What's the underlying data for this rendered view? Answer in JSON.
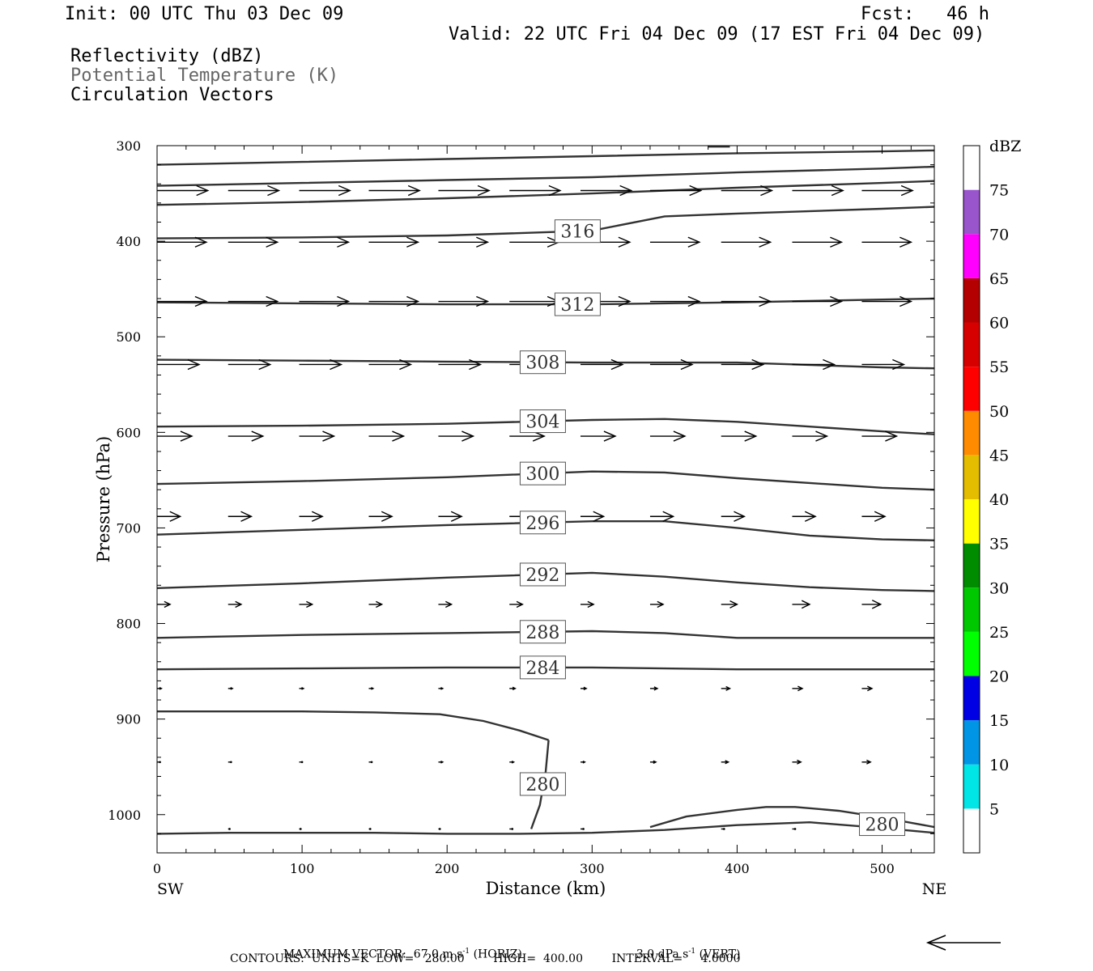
{
  "header": {
    "init": "Init: 00 UTC Thu 03 Dec 09",
    "fcst": "Fcst:   46 h",
    "valid": "Valid: 22 UTC Fri 04 Dec 09 (17 EST Fri 04 Dec 09)",
    "field1": "Reflectivity (dBZ)",
    "field2": "Potential Temperature (K)",
    "field3": "Circulation Vectors"
  },
  "footer": {
    "max_vector_label": "MAXIMUM VECTOR:",
    "max_vector_horiz_value": "67.0 m s",
    "max_vector_horiz_sup": "-1",
    "max_vector_horiz_tag": "(HORIZ)",
    "max_vector_vert_value": "3.0 dPa s",
    "max_vector_vert_sup": "-1",
    "max_vector_vert_tag": "(VERT)",
    "contours": "CONTOURS:  UNITS=K  LOW=   280.00        HIGH=  400.00        INTERVAL=     4.0000"
  },
  "colors": {
    "contour": "#333333",
    "axis": "#000000",
    "potential_temperature_legend": "#666666"
  },
  "chart_data": {
    "type": "cross-section",
    "xlabel": "Distance (km)",
    "ylabel": "Pressure (hPa)",
    "xlim": [
      0,
      536
    ],
    "ylim": [
      1040,
      300
    ],
    "y_log_scale": false,
    "x_ticks": [
      0,
      100,
      200,
      300,
      400,
      500
    ],
    "y_ticks": [
      300,
      400,
      500,
      600,
      700,
      800,
      900,
      1000
    ],
    "x_end_labels": {
      "left": "SW",
      "right": "NE"
    },
    "colorbar": {
      "unit": "dBZ",
      "levels": [
        5,
        10,
        15,
        20,
        25,
        30,
        35,
        40,
        45,
        50,
        55,
        60,
        65,
        70,
        75
      ],
      "colors": [
        "#ffffff",
        "#00e5e5",
        "#0096e5",
        "#0000e5",
        "#00ff00",
        "#00c800",
        "#008c00",
        "#ffff00",
        "#e5bd00",
        "#ff8c00",
        "#ff0000",
        "#d70000",
        "#b40000",
        "#ff00ff",
        "#9955cc",
        "#ffffff"
      ]
    },
    "reflectivity_present": false,
    "theta_contours": [
      {
        "level": 280,
        "label": "280",
        "x": [
          0,
          50,
          100,
          150,
          200,
          250,
          300,
          350,
          400,
          450,
          500,
          536
        ],
        "p": [
          1020,
          1019,
          1019,
          1019,
          1020,
          1020,
          1019,
          1016,
          1011,
          1008,
          1014,
          1019
        ]
      },
      {
        "level": 280,
        "label": "280",
        "x": [
          0,
          50,
          100,
          150,
          195,
          225,
          250,
          270
        ],
        "p": [
          892,
          892,
          892,
          893,
          895,
          902,
          912,
          922
        ]
      },
      {
        "level": 280,
        "label": "",
        "x": [
          270,
          268,
          264,
          258
        ],
        "p": [
          922,
          955,
          990,
          1015
        ]
      },
      {
        "level": 280,
        "label": "",
        "x": [
          340,
          365,
          400,
          420,
          440,
          470,
          500,
          536
        ],
        "p": [
          1013,
          1002,
          995,
          992,
          992,
          996,
          1003,
          1013
        ]
      },
      {
        "level": 284,
        "label": "284",
        "x": [
          0,
          100,
          200,
          300,
          400,
          500,
          536
        ],
        "p": [
          848,
          847,
          846,
          846,
          848,
          848,
          848
        ]
      },
      {
        "level": 288,
        "label": "288",
        "x": [
          0,
          100,
          200,
          300,
          350,
          400,
          500,
          536
        ],
        "p": [
          815,
          812,
          810,
          808,
          810,
          815,
          815,
          815
        ]
      },
      {
        "level": 292,
        "label": "292",
        "x": [
          0,
          100,
          200,
          300,
          350,
          400,
          450,
          500,
          536
        ],
        "p": [
          763,
          758,
          752,
          747,
          751,
          757,
          762,
          765,
          766
        ]
      },
      {
        "level": 296,
        "label": "296",
        "x": [
          0,
          100,
          200,
          300,
          350,
          400,
          450,
          500,
          536
        ],
        "p": [
          707,
          702,
          697,
          693,
          693,
          700,
          708,
          712,
          713
        ]
      },
      {
        "level": 300,
        "label": "300",
        "x": [
          0,
          100,
          200,
          300,
          350,
          400,
          450,
          500,
          536
        ],
        "p": [
          654,
          651,
          647,
          641,
          642,
          648,
          653,
          658,
          660
        ]
      },
      {
        "level": 304,
        "label": "304",
        "x": [
          0,
          100,
          200,
          300,
          350,
          400,
          450,
          500,
          536
        ],
        "p": [
          594,
          593,
          591,
          587,
          586,
          589,
          594,
          599,
          602
        ]
      },
      {
        "level": 308,
        "label": "308",
        "x": [
          0,
          100,
          200,
          300,
          400,
          500,
          536
        ],
        "p": [
          524,
          525,
          526,
          527,
          527,
          532,
          533
        ]
      },
      {
        "level": 312,
        "label": "312",
        "x": [
          0,
          100,
          200,
          300,
          400,
          500,
          536
        ],
        "p": [
          464,
          465,
          466,
          466,
          464,
          461,
          460
        ]
      },
      {
        "level": 316,
        "label": "316",
        "x": [
          0,
          100,
          200,
          300,
          350,
          400,
          500,
          536
        ],
        "p": [
          397,
          396,
          394,
          389,
          374,
          371,
          366,
          364
        ]
      },
      {
        "level": 320,
        "label": "",
        "x": [
          0,
          100,
          200,
          300,
          400,
          500,
          536
        ],
        "p": [
          362,
          359,
          355,
          350,
          344,
          339,
          337
        ]
      },
      {
        "level": 324,
        "label": "",
        "x": [
          0,
          100,
          200,
          300,
          400,
          500,
          536
        ],
        "p": [
          342,
          339,
          336,
          333,
          328,
          324,
          322
        ]
      },
      {
        "level": 328,
        "label": "",
        "x": [
          0,
          100,
          200,
          300,
          400,
          500,
          536
        ],
        "p": [
          320,
          317,
          314,
          311,
          308,
          306,
          305
        ]
      },
      {
        "level": 332,
        "label": "",
        "x": [
          380,
          395
        ],
        "p": [
          301,
          301
        ]
      }
    ],
    "vector_rows": [
      {
        "p": 347,
        "x": [
          0,
          49,
          98,
          146,
          194,
          243,
          292,
          340,
          389,
          438,
          486
        ],
        "len_km": [
          35,
          35,
          35,
          35,
          35,
          35,
          35,
          35,
          35,
          35,
          35
        ]
      },
      {
        "p": 401,
        "x": [
          0,
          49,
          98,
          146,
          194,
          243,
          292,
          340,
          389,
          438,
          486
        ],
        "len_km": [
          34,
          34,
          34,
          34,
          34,
          34,
          34,
          34,
          34,
          34,
          34
        ]
      },
      {
        "p": 463,
        "x": [
          0,
          49,
          98,
          146,
          194,
          243,
          292,
          340,
          389,
          438,
          486
        ],
        "len_km": [
          34,
          34,
          34,
          34,
          34,
          34,
          34,
          34,
          34,
          34,
          34
        ]
      },
      {
        "p": 529,
        "x": [
          0,
          49,
          98,
          146,
          194,
          243,
          292,
          340,
          389,
          438,
          486
        ],
        "len_km": [
          29,
          29,
          29,
          29,
          29,
          29,
          29,
          29,
          29,
          29,
          29
        ]
      },
      {
        "p": 604,
        "x": [
          0,
          49,
          98,
          146,
          194,
          243,
          292,
          340,
          389,
          438,
          486
        ],
        "len_km": [
          24,
          24,
          24,
          24,
          24,
          24,
          24,
          24,
          24,
          24,
          24
        ]
      },
      {
        "p": 688,
        "x": [
          0,
          49,
          98,
          146,
          194,
          243,
          292,
          340,
          389,
          438,
          486
        ],
        "len_km": [
          16,
          16,
          16,
          16,
          16,
          16,
          16,
          16,
          16,
          16,
          16
        ]
      },
      {
        "p": 780,
        "x": [
          0,
          49,
          98,
          146,
          194,
          243,
          292,
          340,
          389,
          438,
          486
        ],
        "len_km": [
          9,
          9,
          9,
          9,
          9,
          9,
          9,
          9,
          11,
          12,
          13
        ]
      },
      {
        "p": 868,
        "x": [
          0,
          49,
          98,
          146,
          194,
          243,
          292,
          340,
          389,
          438,
          486
        ],
        "len_km": [
          3,
          3,
          3,
          3,
          3,
          4,
          4,
          5,
          6,
          7,
          7
        ]
      },
      {
        "p": 945,
        "x": [
          0,
          49,
          98,
          146,
          194,
          243,
          292,
          340,
          389,
          438,
          486
        ],
        "len_km": [
          2,
          2,
          2,
          2,
          3,
          3,
          3,
          4,
          5,
          6,
          6
        ]
      },
      {
        "p": 1015,
        "x": [
          49,
          98,
          146,
          194,
          243,
          292,
          389,
          438
        ],
        "len_km": [
          1,
          1,
          1,
          1,
          2,
          2,
          2,
          2
        ]
      }
    ]
  }
}
